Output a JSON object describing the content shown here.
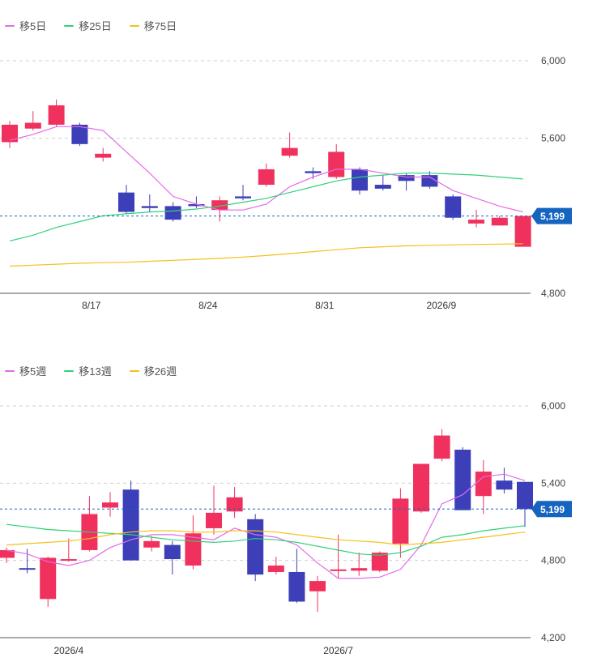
{
  "colors": {
    "up": "#f0315e",
    "down": "#3d3fb8",
    "current": "#1565c0",
    "grid": "#cfcfcf",
    "axis": "#555555"
  },
  "chart_data": [
    {
      "type": "candlestick",
      "period": "daily",
      "legend": [
        {
          "name": "移5日",
          "color": "#e26be8"
        },
        {
          "name": "移25日",
          "color": "#2fd278"
        },
        {
          "name": "移75日",
          "color": "#f5c01a"
        }
      ],
      "ylim": [
        4800,
        6100
      ],
      "yticks": [
        4800,
        5600,
        6000
      ],
      "ytick_labels": [
        "4,800",
        "5,600",
        "6,000"
      ],
      "xtick_labels": [
        {
          "label": "8/17",
          "index": 3.5
        },
        {
          "label": "8/24",
          "index": 8.5
        },
        {
          "label": "8/31",
          "index": 13.5
        },
        {
          "label": "2026/9",
          "index": 18.5
        }
      ],
      "current_price": 5199,
      "current_price_label": "5,199",
      "candles": [
        {
          "o": 5580,
          "c": 5670,
          "h": 5690,
          "l": 5550
        },
        {
          "o": 5650,
          "c": 5680,
          "h": 5740,
          "l": 5640
        },
        {
          "o": 5670,
          "c": 5770,
          "h": 5800,
          "l": 5660
        },
        {
          "o": 5670,
          "c": 5570,
          "h": 5680,
          "l": 5560
        },
        {
          "o": 5500,
          "c": 5520,
          "h": 5550,
          "l": 5480
        },
        {
          "o": 5320,
          "c": 5220,
          "h": 5360,
          "l": 5210
        },
        {
          "o": 5250,
          "c": 5240,
          "h": 5310,
          "l": 5220
        },
        {
          "o": 5250,
          "c": 5180,
          "h": 5270,
          "l": 5170
        },
        {
          "o": 5260,
          "c": 5250,
          "h": 5300,
          "l": 5240
        },
        {
          "o": 5230,
          "c": 5280,
          "h": 5300,
          "l": 5170
        },
        {
          "o": 5300,
          "c": 5290,
          "h": 5360,
          "l": 5280
        },
        {
          "o": 5360,
          "c": 5440,
          "h": 5470,
          "l": 5350
        },
        {
          "o": 5510,
          "c": 5550,
          "h": 5630,
          "l": 5500
        },
        {
          "o": 5430,
          "c": 5420,
          "h": 5450,
          "l": 5390
        },
        {
          "o": 5400,
          "c": 5530,
          "h": 5570,
          "l": 5390
        },
        {
          "o": 5440,
          "c": 5330,
          "h": 5450,
          "l": 5310
        },
        {
          "o": 5360,
          "c": 5340,
          "h": 5410,
          "l": 5330
        },
        {
          "o": 5410,
          "c": 5380,
          "h": 5420,
          "l": 5330
        },
        {
          "o": 5410,
          "c": 5350,
          "h": 5430,
          "l": 5340
        },
        {
          "o": 5300,
          "c": 5190,
          "h": 5310,
          "l": 5180
        },
        {
          "o": 5160,
          "c": 5180,
          "h": 5230,
          "l": 5140
        },
        {
          "o": 5150,
          "c": 5190,
          "h": 5200,
          "l": 5150
        },
        {
          "o": 5040,
          "c": 5199,
          "h": 5199,
          "l": 5040
        }
      ],
      "ma_series": [
        {
          "name": "移5日",
          "color": "#e26be8",
          "values": [
            5590,
            5620,
            5660,
            5660,
            5640,
            5530,
            5420,
            5300,
            5260,
            5230,
            5230,
            5260,
            5350,
            5400,
            5440,
            5440,
            5420,
            5400,
            5400,
            5330,
            5290,
            5250,
            5220
          ]
        },
        {
          "name": "移25日",
          "color": "#2fd278",
          "values": [
            5070,
            5100,
            5140,
            5170,
            5200,
            5210,
            5220,
            5225,
            5235,
            5250,
            5270,
            5290,
            5320,
            5350,
            5380,
            5400,
            5410,
            5420,
            5420,
            5415,
            5410,
            5400,
            5390
          ]
        },
        {
          "name": "移75日",
          "color": "#f5c01a",
          "values": [
            4940,
            4945,
            4950,
            4955,
            4958,
            4960,
            4965,
            4970,
            4975,
            4980,
            4987,
            4995,
            5005,
            5015,
            5025,
            5035,
            5040,
            5045,
            5048,
            5050,
            5052,
            5054,
            5056
          ]
        }
      ]
    },
    {
      "type": "candlestick",
      "period": "weekly",
      "legend": [
        {
          "name": "移5週",
          "color": "#e26be8"
        },
        {
          "name": "移13週",
          "color": "#2fd278"
        },
        {
          "name": "移26週",
          "color": "#f5c01a"
        }
      ],
      "ylim": [
        4200,
        6100
      ],
      "yticks": [
        4200,
        4800,
        5400,
        6000
      ],
      "ytick_labels": [
        "4,200",
        "4,800",
        "5,400",
        "6,000"
      ],
      "xtick_labels": [
        {
          "label": "2026/4",
          "index": 3
        },
        {
          "label": "2026/7",
          "index": 16
        }
      ],
      "current_price": 5199,
      "current_price_label": "5,199",
      "candles": [
        {
          "o": 4820,
          "c": 4880,
          "h": 4900,
          "l": 4780
        },
        {
          "o": 4740,
          "c": 4730,
          "h": 4890,
          "l": 4700
        },
        {
          "o": 4500,
          "c": 4820,
          "h": 4830,
          "l": 4440
        },
        {
          "o": 4800,
          "c": 4810,
          "h": 4970,
          "l": 4790
        },
        {
          "o": 4880,
          "c": 5160,
          "h": 5300,
          "l": 4870
        },
        {
          "o": 5210,
          "c": 5250,
          "h": 5330,
          "l": 5140
        },
        {
          "o": 5350,
          "c": 4800,
          "h": 5420,
          "l": 4800
        },
        {
          "o": 4900,
          "c": 4950,
          "h": 4990,
          "l": 4870
        },
        {
          "o": 4920,
          "c": 4810,
          "h": 4950,
          "l": 4690
        },
        {
          "o": 4760,
          "c": 5010,
          "h": 5150,
          "l": 4730
        },
        {
          "o": 5050,
          "c": 5170,
          "h": 5380,
          "l": 5000
        },
        {
          "o": 5180,
          "c": 5290,
          "h": 5370,
          "l": 5130
        },
        {
          "o": 5120,
          "c": 4690,
          "h": 5160,
          "l": 4640
        },
        {
          "o": 4710,
          "c": 4760,
          "h": 4830,
          "l": 4690
        },
        {
          "o": 4710,
          "c": 4480,
          "h": 4890,
          "l": 4470
        },
        {
          "o": 4560,
          "c": 4640,
          "h": 4680,
          "l": 4400
        },
        {
          "o": 4730,
          "c": 4730,
          "h": 5000,
          "l": 4660
        },
        {
          "o": 4720,
          "c": 4740,
          "h": 4860,
          "l": 4680
        },
        {
          "o": 4720,
          "c": 4860,
          "h": 4870,
          "l": 4710
        },
        {
          "o": 4930,
          "c": 5280,
          "h": 5360,
          "l": 4820
        },
        {
          "o": 5180,
          "c": 5550,
          "h": 5550,
          "l": 5170
        },
        {
          "o": 5590,
          "c": 5770,
          "h": 5820,
          "l": 5570
        },
        {
          "o": 5660,
          "c": 5190,
          "h": 5680,
          "l": 5190
        },
        {
          "o": 5300,
          "c": 5490,
          "h": 5580,
          "l": 5160
        },
        {
          "o": 5420,
          "c": 5350,
          "h": 5520,
          "l": 5320
        },
        {
          "o": 5410,
          "c": 5199,
          "h": 5410,
          "l": 5060
        }
      ],
      "ma_series": [
        {
          "name": "移5週",
          "color": "#e26be8",
          "values": [
            4880,
            4850,
            4790,
            4760,
            4800,
            4900,
            4960,
            5000,
            5000,
            4980,
            4960,
            5050,
            5000,
            4980,
            4920,
            4780,
            4660,
            4660,
            4670,
            4730,
            4920,
            5240,
            5310,
            5450,
            5470,
            5420
          ]
        },
        {
          "name": "移13週",
          "color": "#2fd278",
          "values": [
            5080,
            5060,
            5040,
            5030,
            5020,
            5010,
            5000,
            4980,
            4960,
            4950,
            4940,
            4950,
            4970,
            4960,
            4940,
            4910,
            4880,
            4850,
            4840,
            4860,
            4910,
            4980,
            5000,
            5030,
            5050,
            5070
          ]
        },
        {
          "name": "移26週",
          "color": "#f5c01a",
          "values": [
            4920,
            4930,
            4940,
            4950,
            4970,
            5000,
            5020,
            5030,
            5030,
            5020,
            5020,
            5030,
            5030,
            5020,
            5000,
            4980,
            4960,
            4950,
            4940,
            4920,
            4930,
            4940,
            4960,
            4980,
            5000,
            5020
          ]
        }
      ]
    }
  ]
}
